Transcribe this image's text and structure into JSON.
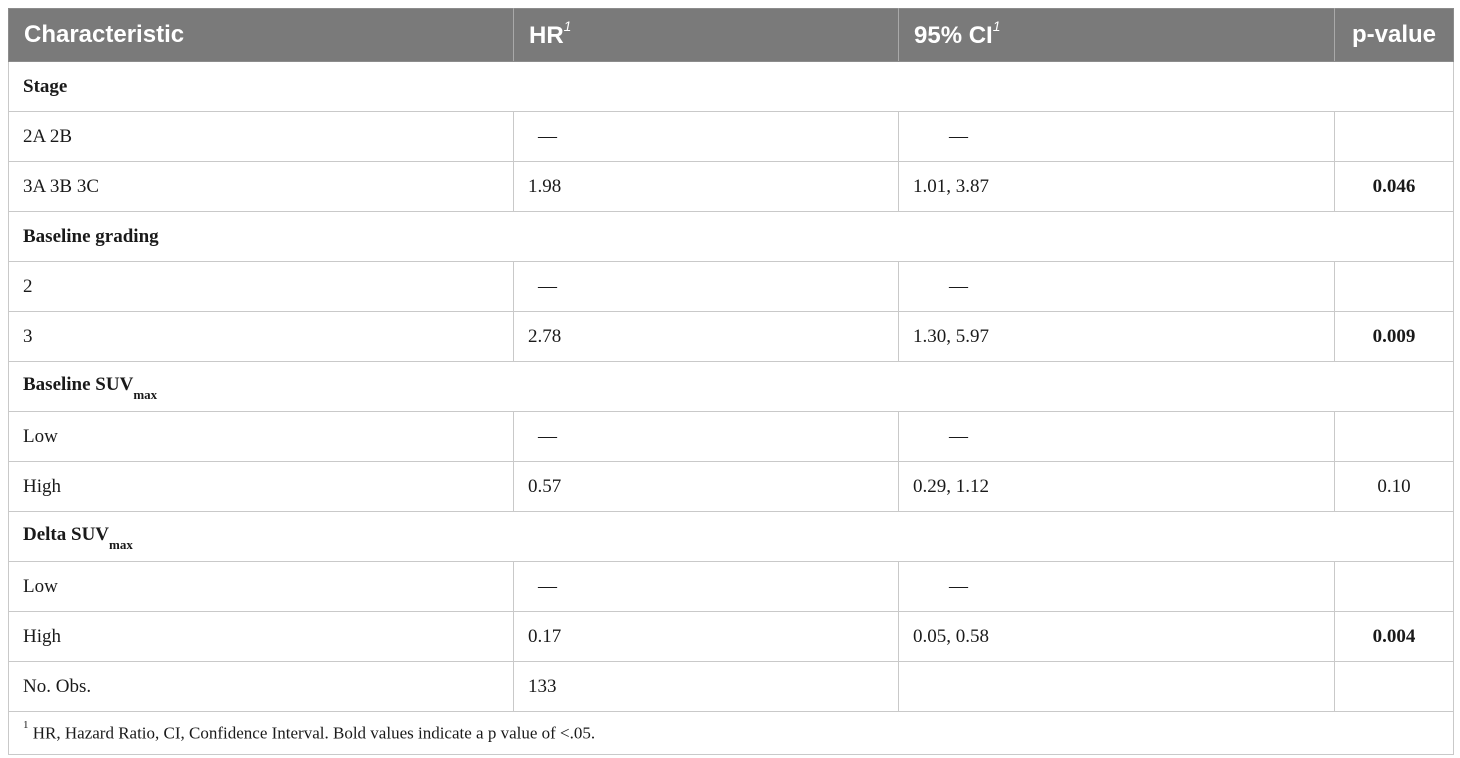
{
  "header": {
    "characteristic": "Characteristic",
    "hr": "HR",
    "hr_sup": "1",
    "ci": "95% CI",
    "ci_sup": "1",
    "pvalue": "p-value"
  },
  "sections": [
    {
      "title": "Stage",
      "title_sub": "",
      "rows": [
        {
          "label": "2A 2B",
          "hr": "—",
          "ci": "—",
          "p": "",
          "bold": false
        },
        {
          "label": "3A 3B 3C",
          "hr": "1.98",
          "ci": "1.01, 3.87",
          "p": "0.046",
          "bold": true
        }
      ]
    },
    {
      "title": "Baseline grading",
      "title_sub": "",
      "rows": [
        {
          "label": "2",
          "hr": "—",
          "ci": "—",
          "p": "",
          "bold": false
        },
        {
          "label": "3",
          "hr": "2.78",
          "ci": "1.30, 5.97",
          "p": "0.009",
          "bold": true
        }
      ]
    },
    {
      "title": "Baseline SUV",
      "title_sub": "max",
      "rows": [
        {
          "label": "Low",
          "hr": "—",
          "ci": "—",
          "p": "",
          "bold": false
        },
        {
          "label": "High",
          "hr": "0.57",
          "ci": "0.29, 1.12",
          "p": "0.10",
          "bold": false
        }
      ]
    },
    {
      "title": "Delta SUV",
      "title_sub": "max",
      "rows": [
        {
          "label": "Low",
          "hr": "—",
          "ci": "—",
          "p": "",
          "bold": false
        },
        {
          "label": "High",
          "hr": "0.17",
          "ci": "0.05, 0.58",
          "p": "0.004",
          "bold": true
        }
      ]
    }
  ],
  "observations": {
    "label": "No. Obs.",
    "value": "133"
  },
  "footnote": {
    "marker": "1",
    "text": "HR, Hazard Ratio, CI, Confidence Interval. Bold values indicate a p value of <.05."
  }
}
